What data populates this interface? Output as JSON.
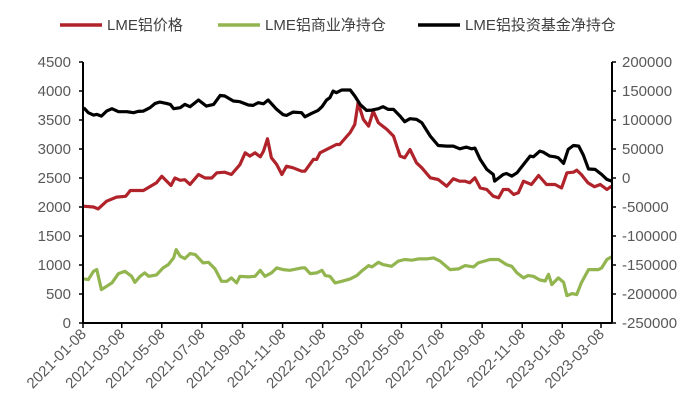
{
  "chart_data": {
    "type": "line",
    "title": "",
    "x_start": "2021-01-08",
    "x_unit": "days since 2021-01-08",
    "x_tick_labels": [
      "2021-01-08",
      "2021-03-08",
      "2021-05-08",
      "2021-07-08",
      "2021-09-08",
      "2021-11-08",
      "2022-01-08",
      "2022-03-08",
      "2022-05-08",
      "2022-07-08",
      "2022-09-08",
      "2022-11-08",
      "2023-01-08",
      "2023-03-08"
    ],
    "x_tick_days": [
      0,
      59,
      120,
      181,
      243,
      304,
      365,
      424,
      485,
      546,
      608,
      669,
      730,
      789
    ],
    "y_left": {
      "ylim": [
        0,
        4500
      ],
      "ticks": [
        "0",
        "500",
        "1000",
        "1500",
        "2000",
        "2500",
        "3000",
        "3500",
        "4000",
        "4500"
      ]
    },
    "y_right": {
      "ylim": [
        -250000,
        200000
      ],
      "ticks": [
        "-250000",
        "-200000",
        "-150000",
        "-100000",
        "-50000",
        "0",
        "50000",
        "100000",
        "150000",
        "200000"
      ]
    },
    "legend_position": "top",
    "series": [
      {
        "name": "LME铝价格",
        "axis": "left",
        "color": "#b0232a",
        "points": [
          [
            0,
            2014
          ],
          [
            16,
            2000
          ],
          [
            23,
            1968
          ],
          [
            36,
            2100
          ],
          [
            51,
            2170
          ],
          [
            65,
            2185
          ],
          [
            72,
            2285
          ],
          [
            92,
            2285
          ],
          [
            112,
            2417
          ],
          [
            120,
            2530
          ],
          [
            134,
            2370
          ],
          [
            140,
            2500
          ],
          [
            148,
            2460
          ],
          [
            155,
            2470
          ],
          [
            163,
            2390
          ],
          [
            176,
            2560
          ],
          [
            186,
            2500
          ],
          [
            196,
            2500
          ],
          [
            204,
            2590
          ],
          [
            216,
            2600
          ],
          [
            226,
            2560
          ],
          [
            239,
            2730
          ],
          [
            247,
            2935
          ],
          [
            254,
            2877
          ],
          [
            262,
            2935
          ],
          [
            270,
            2865
          ],
          [
            275,
            2963
          ],
          [
            281,
            3176
          ],
          [
            287,
            2848
          ],
          [
            295,
            2733
          ],
          [
            303,
            2560
          ],
          [
            310,
            2704
          ],
          [
            320,
            2675
          ],
          [
            333,
            2618
          ],
          [
            338,
            2618
          ],
          [
            351,
            2820
          ],
          [
            356,
            2820
          ],
          [
            361,
            2935
          ],
          [
            376,
            3020
          ],
          [
            386,
            3078
          ],
          [
            391,
            3078
          ],
          [
            407,
            3285
          ],
          [
            414,
            3424
          ],
          [
            419,
            3800
          ],
          [
            427,
            3510
          ],
          [
            435,
            3395
          ],
          [
            442,
            3654
          ],
          [
            450,
            3452
          ],
          [
            463,
            3337
          ],
          [
            473,
            3222
          ],
          [
            483,
            2877
          ],
          [
            490,
            2848
          ],
          [
            498,
            2992
          ],
          [
            508,
            2762
          ],
          [
            516,
            2676
          ],
          [
            529,
            2503
          ],
          [
            541,
            2474
          ],
          [
            554,
            2359
          ],
          [
            564,
            2486
          ],
          [
            574,
            2445
          ],
          [
            582,
            2445
          ],
          [
            589,
            2417
          ],
          [
            597,
            2503
          ],
          [
            605,
            2330
          ],
          [
            615,
            2302
          ],
          [
            625,
            2186
          ],
          [
            633,
            2158
          ],
          [
            640,
            2302
          ],
          [
            648,
            2302
          ],
          [
            656,
            2215
          ],
          [
            663,
            2244
          ],
          [
            671,
            2445
          ],
          [
            683,
            2388
          ],
          [
            694,
            2543
          ],
          [
            706,
            2388
          ],
          [
            719,
            2388
          ],
          [
            729,
            2330
          ],
          [
            737,
            2589
          ],
          [
            747,
            2600
          ],
          [
            752,
            2635
          ],
          [
            759,
            2560
          ],
          [
            769,
            2417
          ],
          [
            779,
            2348
          ],
          [
            788,
            2388
          ],
          [
            798,
            2302
          ],
          [
            805,
            2359
          ]
        ]
      },
      {
        "name": "LME铝商业净持仓",
        "axis": "right",
        "color": "#92b550",
        "points": [
          [
            1,
            -174000
          ],
          [
            8,
            -175200
          ],
          [
            16,
            -160800
          ],
          [
            21,
            -157900
          ],
          [
            28,
            -192400
          ],
          [
            36,
            -186700
          ],
          [
            44,
            -180900
          ],
          [
            54,
            -164800
          ],
          [
            64,
            -160800
          ],
          [
            74,
            -169400
          ],
          [
            79,
            -179800
          ],
          [
            87,
            -169400
          ],
          [
            94,
            -163600
          ],
          [
            100,
            -169400
          ],
          [
            112,
            -167100
          ],
          [
            122,
            -155000
          ],
          [
            130,
            -149300
          ],
          [
            138,
            -137800
          ],
          [
            142,
            -123400
          ],
          [
            148,
            -134900
          ],
          [
            155,
            -138900
          ],
          [
            163,
            -130300
          ],
          [
            171,
            -132000
          ],
          [
            183,
            -146400
          ],
          [
            191,
            -145300
          ],
          [
            201,
            -156800
          ],
          [
            211,
            -178100
          ],
          [
            219,
            -178100
          ],
          [
            226,
            -172300
          ],
          [
            234,
            -180900
          ],
          [
            239,
            -169400
          ],
          [
            252,
            -170500
          ],
          [
            262,
            -169400
          ],
          [
            270,
            -159100
          ],
          [
            277,
            -169400
          ],
          [
            287,
            -163600
          ],
          [
            295,
            -155000
          ],
          [
            305,
            -157900
          ],
          [
            315,
            -159100
          ],
          [
            333,
            -155000
          ],
          [
            338,
            -155000
          ],
          [
            346,
            -164800
          ],
          [
            356,
            -163600
          ],
          [
            364,
            -159100
          ],
          [
            369,
            -168200
          ],
          [
            376,
            -169400
          ],
          [
            384,
            -180900
          ],
          [
            394,
            -178100
          ],
          [
            407,
            -174000
          ],
          [
            417,
            -168200
          ],
          [
            424,
            -160800
          ],
          [
            435,
            -151000
          ],
          [
            440,
            -153200
          ],
          [
            450,
            -145300
          ],
          [
            457,
            -149300
          ],
          [
            470,
            -152200
          ],
          [
            480,
            -143500
          ],
          [
            490,
            -140600
          ],
          [
            501,
            -141800
          ],
          [
            511,
            -139500
          ],
          [
            523,
            -139500
          ],
          [
            534,
            -137800
          ],
          [
            544,
            -143500
          ],
          [
            559,
            -157900
          ],
          [
            572,
            -156800
          ],
          [
            582,
            -151000
          ],
          [
            595,
            -153200
          ],
          [
            602,
            -146400
          ],
          [
            620,
            -140600
          ],
          [
            633,
            -140600
          ],
          [
            645,
            -149300
          ],
          [
            653,
            -152200
          ],
          [
            661,
            -163600
          ],
          [
            671,
            -172300
          ],
          [
            678,
            -168200
          ],
          [
            686,
            -169400
          ],
          [
            696,
            -175900
          ],
          [
            704,
            -177600
          ],
          [
            709,
            -166000
          ],
          [
            714,
            -183800
          ],
          [
            724,
            -172300
          ],
          [
            732,
            -179800
          ],
          [
            737,
            -202800
          ],
          [
            745,
            -199300
          ],
          [
            752,
            -201000
          ],
          [
            759,
            -180900
          ],
          [
            770,
            -157900
          ],
          [
            785,
            -157900
          ],
          [
            790,
            -155000
          ],
          [
            798,
            -140600
          ],
          [
            805,
            -136000
          ]
        ]
      },
      {
        "name": "LME铝投资基金净持仓",
        "axis": "right",
        "color": "#000000",
        "points": [
          [
            1,
            121200
          ],
          [
            8,
            112600
          ],
          [
            16,
            108500
          ],
          [
            21,
            109700
          ],
          [
            28,
            106800
          ],
          [
            36,
            115400
          ],
          [
            44,
            119400
          ],
          [
            54,
            114300
          ],
          [
            67,
            114300
          ],
          [
            77,
            112600
          ],
          [
            84,
            114900
          ],
          [
            92,
            115400
          ],
          [
            102,
            121200
          ],
          [
            110,
            128600
          ],
          [
            117,
            130900
          ],
          [
            127,
            128600
          ],
          [
            133,
            126900
          ],
          [
            138,
            119400
          ],
          [
            148,
            121200
          ],
          [
            155,
            126900
          ],
          [
            163,
            122900
          ],
          [
            176,
            134400
          ],
          [
            188,
            124000
          ],
          [
            199,
            126900
          ],
          [
            209,
            142400
          ],
          [
            216,
            141300
          ],
          [
            229,
            132700
          ],
          [
            239,
            131500
          ],
          [
            252,
            125800
          ],
          [
            259,
            125200
          ],
          [
            267,
            129800
          ],
          [
            275,
            128000
          ],
          [
            282,
            134400
          ],
          [
            295,
            118300
          ],
          [
            305,
            109100
          ],
          [
            310,
            108000
          ],
          [
            320,
            113700
          ],
          [
            333,
            112600
          ],
          [
            338,
            105600
          ],
          [
            348,
            111400
          ],
          [
            358,
            116600
          ],
          [
            364,
            122900
          ],
          [
            371,
            134400
          ],
          [
            376,
            138400
          ],
          [
            381,
            149900
          ],
          [
            386,
            147000
          ],
          [
            394,
            151700
          ],
          [
            407,
            151700
          ],
          [
            414,
            141300
          ],
          [
            422,
            126900
          ],
          [
            432,
            116600
          ],
          [
            440,
            117100
          ],
          [
            450,
            119400
          ],
          [
            457,
            122900
          ],
          [
            465,
            118300
          ],
          [
            473,
            118300
          ],
          [
            483,
            106800
          ],
          [
            490,
            97000
          ],
          [
            498,
            102200
          ],
          [
            508,
            101000
          ],
          [
            516,
            95300
          ],
          [
            529,
            72300
          ],
          [
            541,
            56100
          ],
          [
            554,
            55000
          ],
          [
            564,
            55000
          ],
          [
            574,
            50400
          ],
          [
            584,
            53300
          ],
          [
            592,
            50400
          ],
          [
            597,
            51600
          ],
          [
            605,
            32000
          ],
          [
            615,
            14800
          ],
          [
            625,
            6100
          ],
          [
            627,
            -5400
          ],
          [
            640,
            6100
          ],
          [
            645,
            7800
          ],
          [
            653,
            3200
          ],
          [
            661,
            9000
          ],
          [
            671,
            23300
          ],
          [
            681,
            37700
          ],
          [
            686,
            36500
          ],
          [
            696,
            46400
          ],
          [
            701,
            44600
          ],
          [
            711,
            37700
          ],
          [
            719,
            36500
          ],
          [
            724,
            34900
          ],
          [
            732,
            25100
          ],
          [
            739,
            49300
          ],
          [
            747,
            56100
          ],
          [
            755,
            55000
          ],
          [
            762,
            39600
          ],
          [
            770,
            15500
          ],
          [
            780,
            14800
          ],
          [
            790,
            6100
          ],
          [
            798,
            -2500
          ],
          [
            805,
            -5400
          ]
        ]
      }
    ]
  }
}
